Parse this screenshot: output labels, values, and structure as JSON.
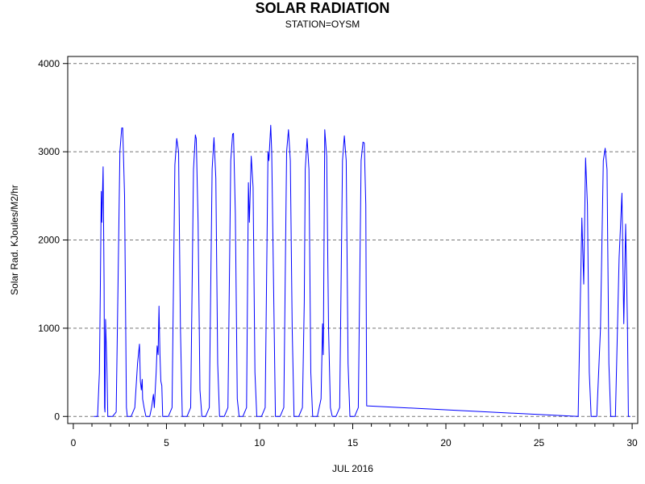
{
  "chart_data": {
    "type": "line",
    "title": "SOLAR RADIATION",
    "subtitle": "STATION=OYSM",
    "xlabel": "JUL 2016",
    "ylabel": "Solar Rad. KJoules/M2/hr",
    "xlim": [
      -0.3,
      30.3
    ],
    "ylim": [
      -80,
      4080
    ],
    "xticks": [
      0,
      5,
      10,
      15,
      20,
      25,
      30
    ],
    "yticks": [
      0,
      1000,
      2000,
      3000,
      4000
    ],
    "grid": "horizontal-dashed",
    "series": [
      {
        "color": "#0000ff",
        "points": [
          [
            1.1,
            0
          ],
          [
            1.3,
            0
          ],
          [
            1.4,
            500
          ],
          [
            1.45,
            1400
          ],
          [
            1.5,
            2550
          ],
          [
            1.53,
            2200
          ],
          [
            1.6,
            2830
          ],
          [
            1.65,
            1500
          ],
          [
            1.68,
            100
          ],
          [
            1.7,
            50
          ],
          [
            1.73,
            1100
          ],
          [
            1.8,
            600
          ],
          [
            1.85,
            0
          ],
          [
            2.1,
            0
          ],
          [
            2.3,
            50
          ],
          [
            2.4,
            1500
          ],
          [
            2.5,
            3000
          ],
          [
            2.6,
            3270
          ],
          [
            2.65,
            3270
          ],
          [
            2.75,
            2500
          ],
          [
            2.85,
            100
          ],
          [
            2.9,
            0
          ],
          [
            3.1,
            0
          ],
          [
            3.3,
            100
          ],
          [
            3.45,
            600
          ],
          [
            3.55,
            820
          ],
          [
            3.6,
            400
          ],
          [
            3.65,
            300
          ],
          [
            3.7,
            420
          ],
          [
            3.72,
            200
          ],
          [
            3.8,
            100
          ],
          [
            3.9,
            0
          ],
          [
            4.1,
            0
          ],
          [
            4.2,
            100
          ],
          [
            4.3,
            250
          ],
          [
            4.35,
            100
          ],
          [
            4.45,
            500
          ],
          [
            4.5,
            800
          ],
          [
            4.55,
            700
          ],
          [
            4.6,
            1250
          ],
          [
            4.65,
            700
          ],
          [
            4.7,
            400
          ],
          [
            4.75,
            350
          ],
          [
            4.8,
            0
          ],
          [
            5.1,
            0
          ],
          [
            5.3,
            100
          ],
          [
            5.45,
            2850
          ],
          [
            5.55,
            3150
          ],
          [
            5.65,
            3000
          ],
          [
            5.75,
            1000
          ],
          [
            5.85,
            0
          ],
          [
            6.1,
            0
          ],
          [
            6.3,
            100
          ],
          [
            6.45,
            2800
          ],
          [
            6.55,
            3190
          ],
          [
            6.6,
            3150
          ],
          [
            6.7,
            2200
          ],
          [
            6.8,
            300
          ],
          [
            6.9,
            0
          ],
          [
            7.1,
            0
          ],
          [
            7.3,
            100
          ],
          [
            7.45,
            2800
          ],
          [
            7.55,
            3160
          ],
          [
            7.65,
            2700
          ],
          [
            7.75,
            600
          ],
          [
            7.85,
            0
          ],
          [
            8.1,
            0
          ],
          [
            8.3,
            100
          ],
          [
            8.45,
            2900
          ],
          [
            8.55,
            3200
          ],
          [
            8.6,
            3210
          ],
          [
            8.7,
            2300
          ],
          [
            8.8,
            200
          ],
          [
            8.9,
            0
          ],
          [
            9.1,
            0
          ],
          [
            9.3,
            100
          ],
          [
            9.4,
            2650
          ],
          [
            9.45,
            2200
          ],
          [
            9.55,
            2950
          ],
          [
            9.65,
            2600
          ],
          [
            9.75,
            500
          ],
          [
            9.85,
            0
          ],
          [
            10.1,
            0
          ],
          [
            10.3,
            100
          ],
          [
            10.45,
            3000
          ],
          [
            10.5,
            2900
          ],
          [
            10.6,
            3300
          ],
          [
            10.65,
            3000
          ],
          [
            10.75,
            1500
          ],
          [
            10.85,
            0
          ],
          [
            11.1,
            0
          ],
          [
            11.3,
            100
          ],
          [
            11.45,
            3000
          ],
          [
            11.55,
            3250
          ],
          [
            11.65,
            2900
          ],
          [
            11.75,
            1000
          ],
          [
            11.85,
            0
          ],
          [
            12.1,
            0
          ],
          [
            12.3,
            100
          ],
          [
            12.4,
            1300
          ],
          [
            12.45,
            2800
          ],
          [
            12.55,
            3150
          ],
          [
            12.65,
            2800
          ],
          [
            12.75,
            500
          ],
          [
            12.85,
            0
          ],
          [
            13.1,
            0
          ],
          [
            13.3,
            200
          ],
          [
            13.38,
            1050
          ],
          [
            13.42,
            700
          ],
          [
            13.5,
            3250
          ],
          [
            13.6,
            2950
          ],
          [
            13.7,
            1000
          ],
          [
            13.8,
            100
          ],
          [
            13.9,
            0
          ],
          [
            14.1,
            0
          ],
          [
            14.3,
            100
          ],
          [
            14.45,
            2900
          ],
          [
            14.55,
            3180
          ],
          [
            14.65,
            2900
          ],
          [
            14.75,
            600
          ],
          [
            14.85,
            0
          ],
          [
            15.1,
            0
          ],
          [
            15.3,
            100
          ],
          [
            15.45,
            2900
          ],
          [
            15.55,
            3110
          ],
          [
            15.62,
            3100
          ],
          [
            15.7,
            2400
          ],
          [
            15.75,
            120
          ],
          [
            27.1,
            0
          ],
          [
            27.3,
            2250
          ],
          [
            27.4,
            1500
          ],
          [
            27.5,
            2930
          ],
          [
            27.6,
            2400
          ],
          [
            27.7,
            500
          ],
          [
            27.8,
            0
          ],
          [
            28.1,
            0
          ],
          [
            28.3,
            1000
          ],
          [
            28.45,
            2900
          ],
          [
            28.55,
            3040
          ],
          [
            28.65,
            2800
          ],
          [
            28.75,
            600
          ],
          [
            28.85,
            0
          ],
          [
            29.1,
            0
          ],
          [
            29.3,
            1800
          ],
          [
            29.45,
            2530
          ],
          [
            29.55,
            1050
          ],
          [
            29.65,
            2180
          ],
          [
            29.75,
            1000
          ],
          [
            29.8,
            0
          ],
          [
            29.9,
            0
          ]
        ]
      }
    ]
  }
}
